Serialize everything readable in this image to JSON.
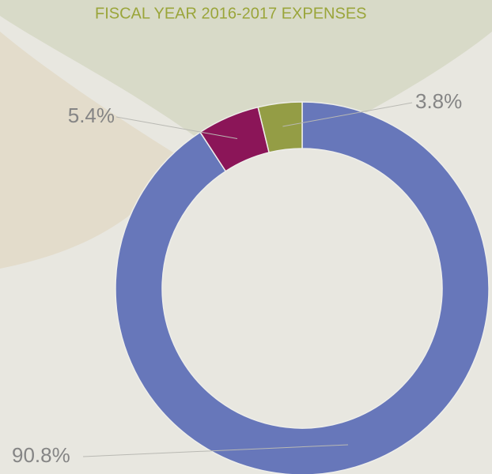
{
  "chart_data": {
    "type": "pie",
    "title": "FISCAL YEAR 2016-2017 EXPENSES",
    "categories": [
      null,
      null,
      null
    ],
    "values": [
      90.8,
      5.4,
      3.8
    ],
    "value_labels": [
      "90.8%",
      "5.4%",
      "3.8%"
    ],
    "colors": [
      "#6777ba",
      "#8b1558",
      "#949d45"
    ],
    "donut": true
  }
}
